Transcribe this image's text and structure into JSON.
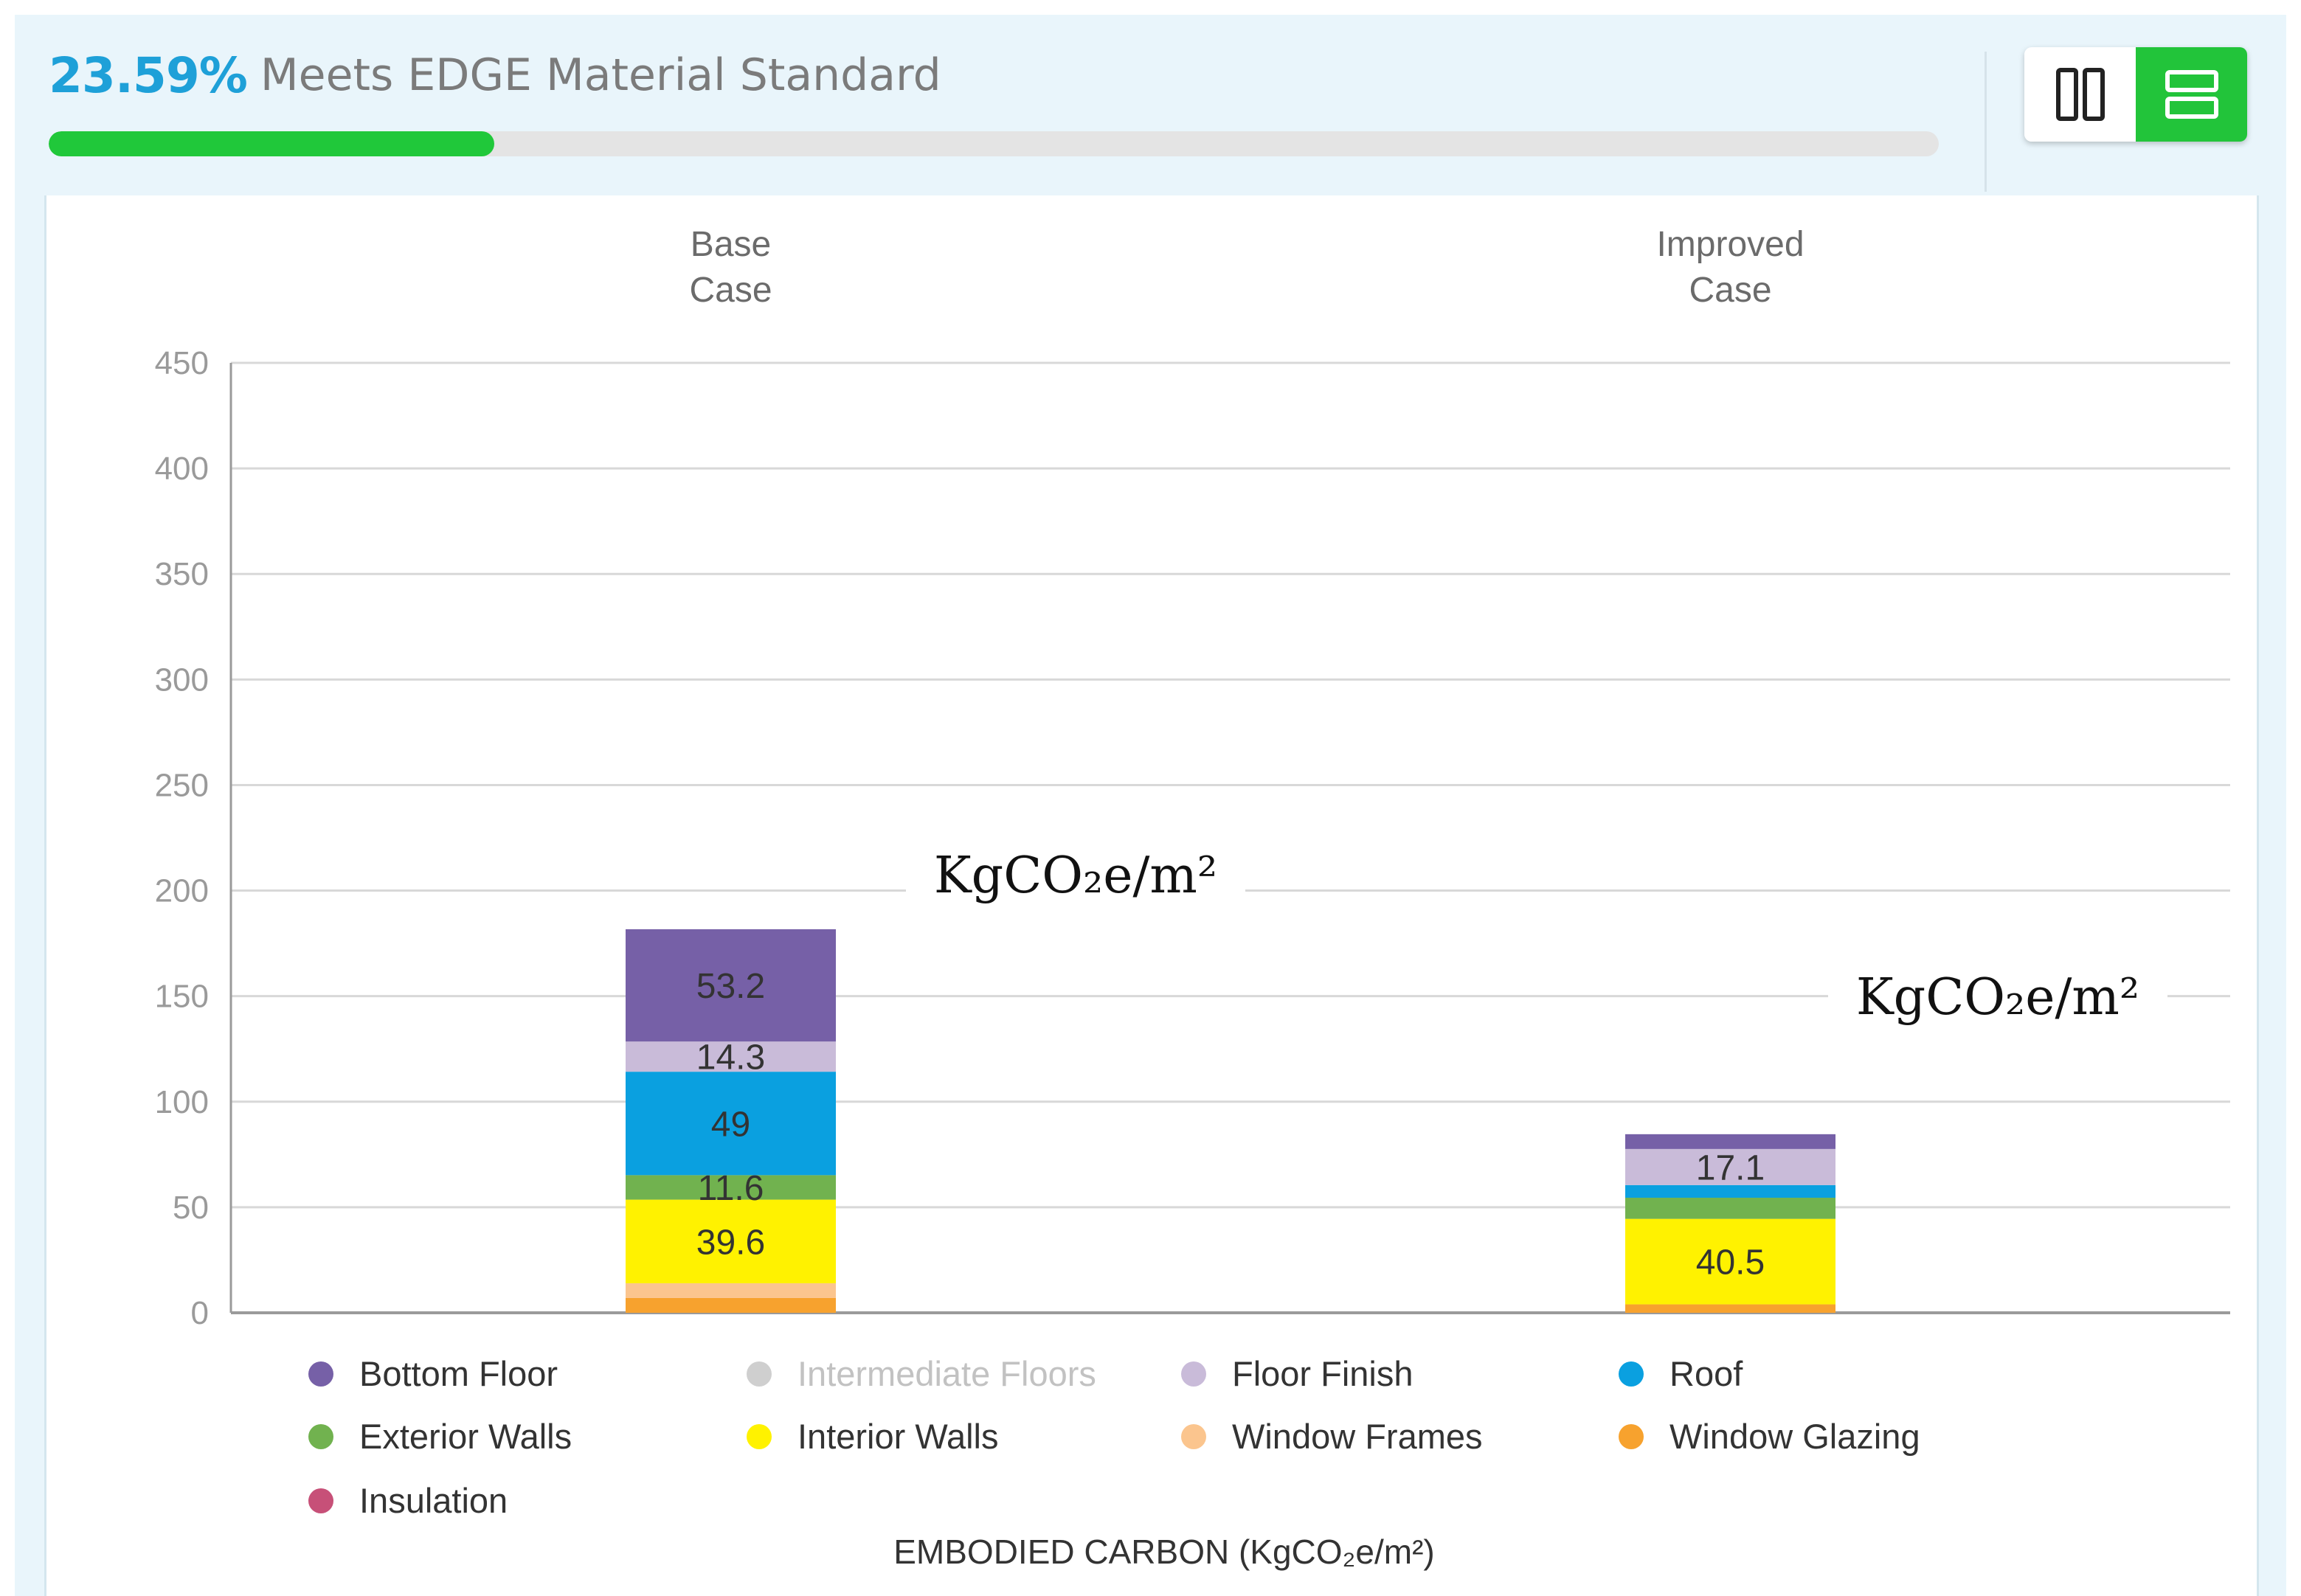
{
  "header": {
    "percent_text": "23.59%",
    "standard_text": "Meets EDGE Material Standard",
    "progress_value": 0.2359,
    "progress_color": "#20c83a",
    "accent_color": "#1ea0d8"
  },
  "view_toggle": {
    "options": [
      {
        "id": "columns",
        "icon": "columns-icon",
        "selected": false
      },
      {
        "id": "rows",
        "icon": "rows-icon",
        "selected": true
      }
    ],
    "selected_color": "#22c43a"
  },
  "chart_data": {
    "type": "bar",
    "stacked": true,
    "categories": [
      [
        "Base",
        "Case"
      ],
      [
        "Improved",
        "Case"
      ]
    ],
    "ylim": [
      0,
      450
    ],
    "yticks": [
      0,
      50,
      100,
      150,
      200,
      250,
      300,
      350,
      400,
      450
    ],
    "xlabel": "EMBODIED CARBON (KgCO₂e/m²)",
    "grid": true,
    "legend_position": "bottom",
    "unit_annotations": [
      "KgCO₂e/m²",
      "KgCO₂e/m²"
    ],
    "series": [
      {
        "name": "Window Glazing",
        "color": "#f7a22e",
        "values": [
          7,
          4
        ],
        "labels": [
          "",
          ""
        ]
      },
      {
        "name": "Window Frames",
        "color": "#fbc58e",
        "values": [
          7,
          0
        ],
        "labels": [
          "",
          ""
        ]
      },
      {
        "name": "Interior Walls",
        "color": "#fff200",
        "values": [
          39.6,
          40.5
        ],
        "labels": [
          "39.6",
          "40.5"
        ]
      },
      {
        "name": "Exterior Walls",
        "color": "#71b24f",
        "values": [
          11.6,
          10
        ],
        "labels": [
          "11.6",
          ""
        ]
      },
      {
        "name": "Roof",
        "color": "#0aa0e0",
        "values": [
          49,
          6
        ],
        "labels": [
          "49",
          ""
        ]
      },
      {
        "name": "Floor Finish",
        "color": "#c9bbd9",
        "values": [
          14.3,
          17.1
        ],
        "labels": [
          "14.3",
          "17.1"
        ]
      },
      {
        "name": "Intermediate Floors",
        "color": "#cfcfcf",
        "values": [
          0,
          0
        ],
        "labels": [
          "",
          ""
        ]
      },
      {
        "name": "Bottom Floor",
        "color": "#7660a7",
        "values": [
          53.2,
          7
        ],
        "labels": [
          "53.2",
          ""
        ]
      },
      {
        "name": "Insulation",
        "color": "#c75078",
        "values": [
          0,
          0
        ],
        "labels": [
          "",
          ""
        ]
      }
    ],
    "legend": [
      {
        "name": "Bottom Floor",
        "color": "#7660a7",
        "dimmed": false
      },
      {
        "name": "Intermediate Floors",
        "color": "#cfcfcf",
        "dimmed": true
      },
      {
        "name": "Floor Finish",
        "color": "#c9bbd9",
        "dimmed": false
      },
      {
        "name": "Roof",
        "color": "#0aa0e0",
        "dimmed": false
      },
      {
        "name": "Exterior Walls",
        "color": "#71b24f",
        "dimmed": false
      },
      {
        "name": "Interior Walls",
        "color": "#fff200",
        "dimmed": false
      },
      {
        "name": "Window Frames",
        "color": "#fbc58e",
        "dimmed": false
      },
      {
        "name": "Window Glazing",
        "color": "#f7a22e",
        "dimmed": false
      },
      {
        "name": "Insulation",
        "color": "#c75078",
        "dimmed": false
      }
    ]
  }
}
